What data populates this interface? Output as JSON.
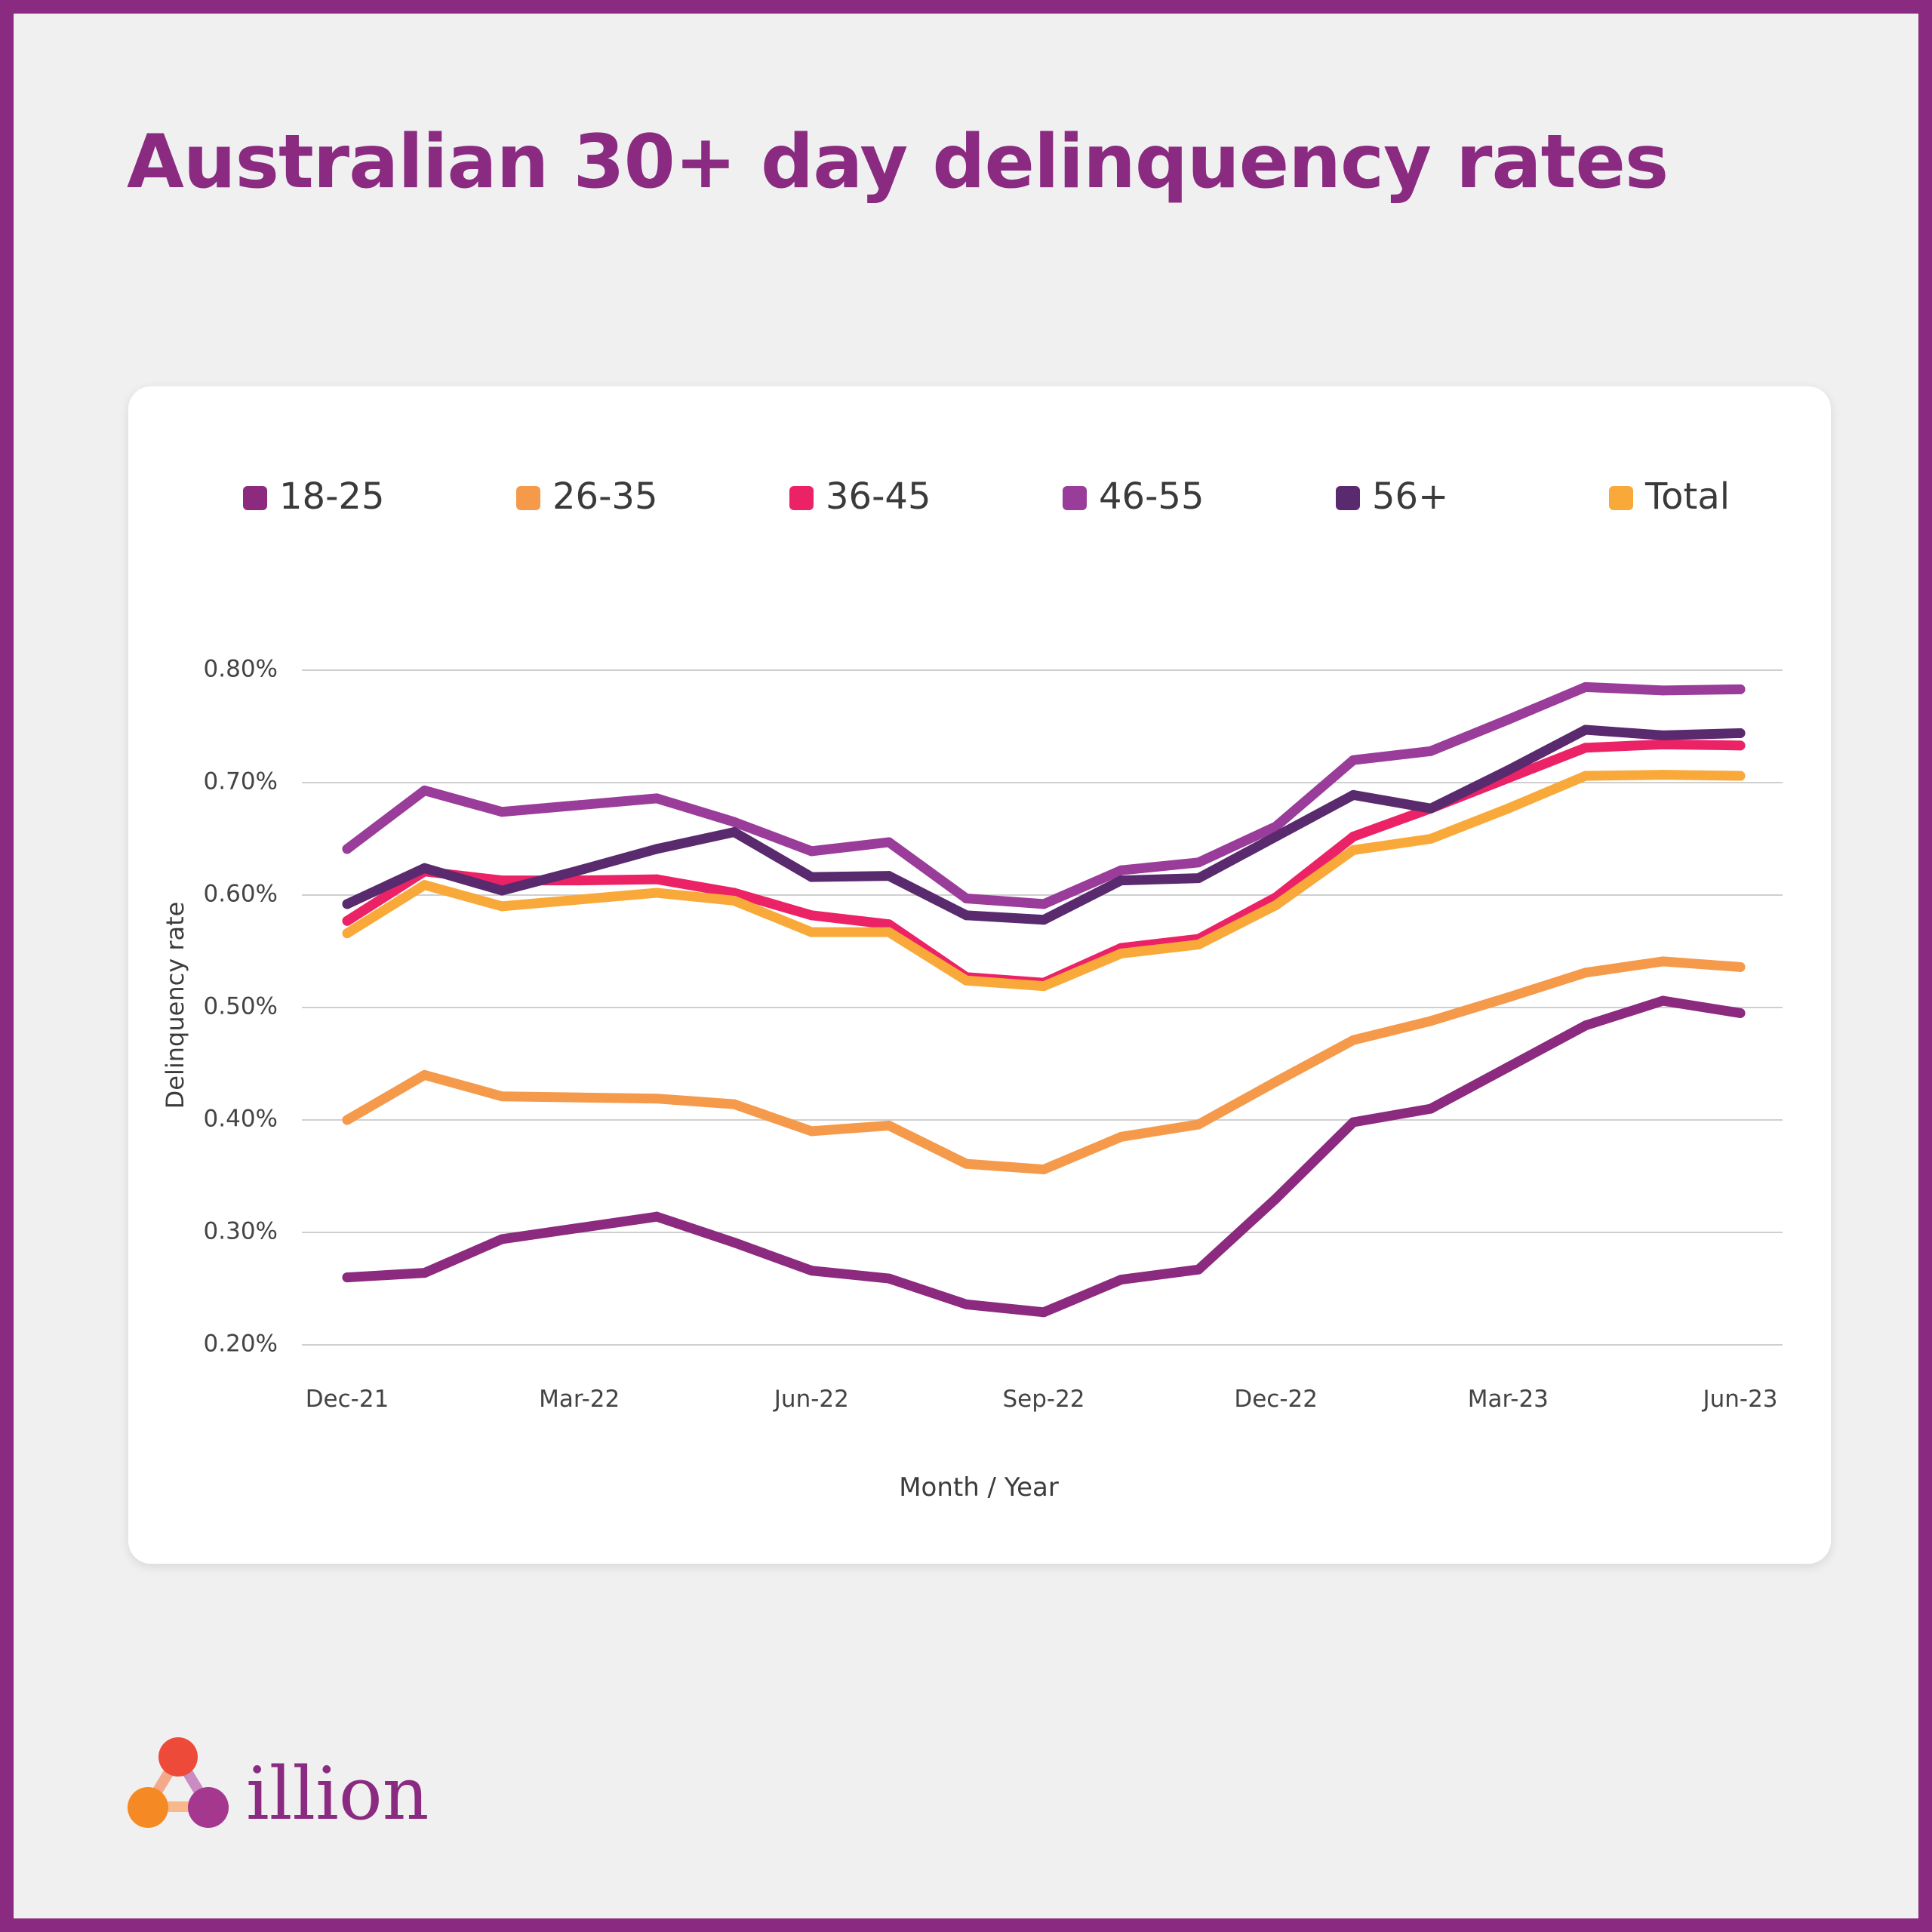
{
  "page": {
    "title": "Australian 30+ day delinquency rates"
  },
  "brand": {
    "name": "illion"
  },
  "chart_data": {
    "type": "line",
    "title": "",
    "xlabel": "Month / Year",
    "ylabel": "Delinquency rate",
    "ylim": [
      0.2,
      0.8
    ],
    "y_ticks": [
      0.2,
      0.3,
      0.4,
      0.5,
      0.6,
      0.7,
      0.8
    ],
    "y_tick_labels": [
      "0.20%",
      "0.30%",
      "0.40%",
      "0.50%",
      "0.60%",
      "0.70%",
      "0.80%"
    ],
    "grid": "horizontal",
    "legend_position": "top",
    "categories": [
      "Dec-21",
      "Jan-22",
      "Feb-22",
      "Mar-22",
      "Apr-22",
      "May-22",
      "Jun-22",
      "Jul-22",
      "Aug-22",
      "Sep-22",
      "Oct-22",
      "Nov-22",
      "Dec-22",
      "Jan-23",
      "Feb-23",
      "Mar-23",
      "Apr-23",
      "May-23",
      "Jun-23"
    ],
    "x_tick_labels": [
      {
        "index": 0,
        "label": "Dec-21"
      },
      {
        "index": 3,
        "label": "Mar-22"
      },
      {
        "index": 6,
        "label": "Jun-22"
      },
      {
        "index": 9,
        "label": "Sep-22"
      },
      {
        "index": 12,
        "label": "Dec-22"
      },
      {
        "index": 15,
        "label": "Mar-23"
      },
      {
        "index": 18,
        "label": "Jun-23"
      }
    ],
    "series": [
      {
        "name": "18-25",
        "color": "#8b2a7f",
        "values": [
          0.26,
          0.264,
          0.294,
          0.304,
          0.314,
          0.291,
          0.266,
          0.259,
          0.236,
          0.229,
          0.258,
          0.267,
          0.33,
          0.398,
          0.41,
          0.447,
          0.484,
          0.506,
          0.495
        ]
      },
      {
        "name": "26-35",
        "color": "#f59a4b",
        "values": [
          0.4,
          0.44,
          0.421,
          0.42,
          0.419,
          0.414,
          0.39,
          0.395,
          0.361,
          0.356,
          0.385,
          0.396,
          0.434,
          0.471,
          0.488,
          0.509,
          0.531,
          0.541,
          0.536
        ]
      },
      {
        "name": "36-45",
        "color": "#ec2266",
        "values": [
          0.577,
          0.621,
          0.613,
          0.613,
          0.614,
          0.602,
          0.582,
          0.574,
          0.527,
          0.522,
          0.553,
          0.561,
          0.598,
          0.652,
          0.677,
          0.704,
          0.731,
          0.734,
          0.733
        ]
      },
      {
        "name": "46-55",
        "color": "#9a3c99",
        "values": [
          0.641,
          0.693,
          0.674,
          0.68,
          0.686,
          0.665,
          0.639,
          0.647,
          0.597,
          0.592,
          0.622,
          0.629,
          0.661,
          0.72,
          0.728,
          0.756,
          0.785,
          0.782,
          0.783
        ]
      },
      {
        "name": "56+",
        "color": "#5a2a6e",
        "values": [
          0.592,
          0.624,
          0.604,
          0.622,
          0.641,
          0.656,
          0.616,
          0.617,
          0.582,
          0.578,
          0.613,
          0.615,
          0.652,
          0.689,
          0.677,
          0.711,
          0.747,
          0.742,
          0.744
        ]
      },
      {
        "name": "Total",
        "color": "#f9a93a",
        "values": [
          0.566,
          0.609,
          0.59,
          0.596,
          0.602,
          0.595,
          0.567,
          0.567,
          0.524,
          0.519,
          0.548,
          0.556,
          0.591,
          0.64,
          0.65,
          0.677,
          0.706,
          0.707,
          0.706
        ]
      }
    ]
  }
}
